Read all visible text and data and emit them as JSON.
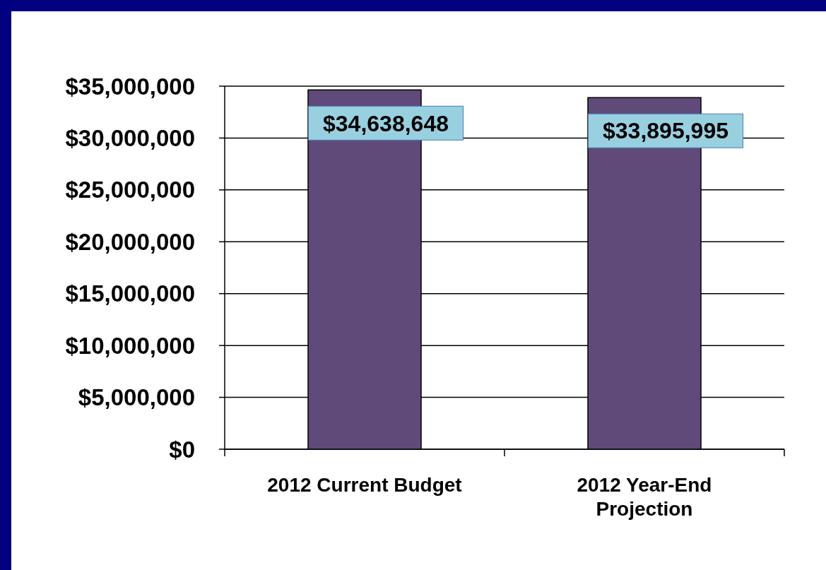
{
  "chart_data": {
    "type": "bar",
    "categories": [
      "2012 Current Budget",
      "2012 Year-End Projection"
    ],
    "values": [
      34638648,
      33895995
    ],
    "value_labels": [
      "$34,638,648",
      "$33,895,995"
    ],
    "color": "#5f4a7a",
    "ylim": [
      0,
      35000000
    ],
    "yticks": [
      {
        "value": 0,
        "label": "$0"
      },
      {
        "value": 5000000,
        "label": "$5,000,000"
      },
      {
        "value": 10000000,
        "label": "$10,000,000"
      },
      {
        "value": 15000000,
        "label": "$15,000,000"
      },
      {
        "value": 20000000,
        "label": "$20,000,000"
      },
      {
        "value": 25000000,
        "label": "$25,000,000"
      },
      {
        "value": 30000000,
        "label": "$30,000,000"
      },
      {
        "value": 35000000,
        "label": "$35,000,000"
      }
    ],
    "grid": "y"
  }
}
